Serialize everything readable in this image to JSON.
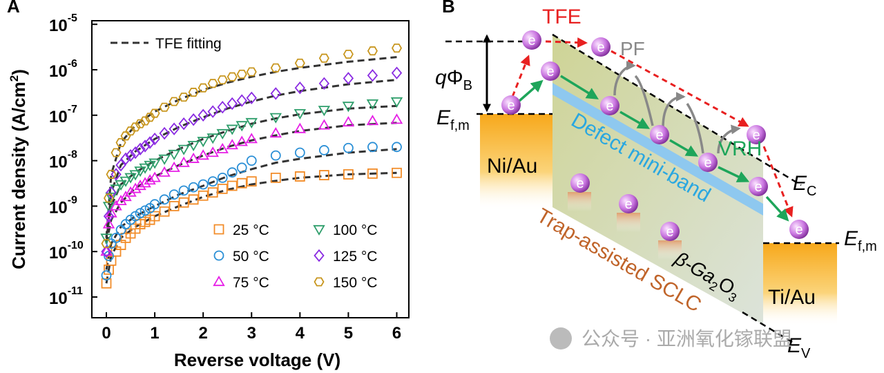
{
  "chart_data": {
    "type": "scatter",
    "panel": "A",
    "x_label": "Reverse voltage (V)",
    "y_label": [
      "Current density (A/cm",
      "2",
      ")"
    ],
    "log_y": true,
    "legend": "lower right",
    "xlim": [
      -0.3,
      6.25
    ],
    "xticks": [
      0,
      1,
      2,
      3,
      4,
      5,
      6
    ],
    "ylim": [
      3.5e-12,
      1.2e-05
    ],
    "yticks": [
      {
        "value": 1e-11,
        "label": [
          "10",
          "-11"
        ]
      },
      {
        "value": 1e-10,
        "label": [
          "10",
          "-10"
        ]
      },
      {
        "value": 1e-09,
        "label": [
          "10",
          "-9"
        ]
      },
      {
        "value": 1e-08,
        "label": [
          "10",
          "-8"
        ]
      },
      {
        "value": 1e-07,
        "label": [
          "10",
          "-7"
        ]
      },
      {
        "value": 1e-06,
        "label": [
          "10",
          "-6"
        ]
      },
      {
        "value": 1e-05,
        "label": [
          "10",
          "-5"
        ]
      }
    ],
    "x": [
      0,
      0.05,
      0.1,
      0.2,
      0.3,
      0.4,
      0.5,
      0.6,
      0.7,
      0.8,
      0.9,
      1.0,
      1.2,
      1.4,
      1.6,
      1.8,
      2.0,
      2.2,
      2.4,
      2.6,
      2.8,
      3.0,
      3.5,
      4.0,
      4.5,
      5.0,
      5.5,
      6.0
    ],
    "series": [
      {
        "name": "25 °C",
        "color": "#f28c28",
        "marker": "square",
        "values": [
          2e-11,
          4e-11,
          6.3e-11,
          1e-10,
          1.4e-10,
          2e-10,
          2.5e-10,
          3.2e-10,
          4e-10,
          4.5e-10,
          5e-10,
          6e-10,
          7.6e-10,
          1e-09,
          1.2e-09,
          1.4e-09,
          1.7e-09,
          2e-09,
          2.4e-09,
          2.8e-09,
          3.2e-09,
          3.5e-09,
          4.2e-09,
          4.5e-09,
          4.8e-09,
          5e-09,
          5.2e-09,
          5.4e-09
        ]
      },
      {
        "name": "50 °C",
        "color": "#2a8fd6",
        "marker": "circle",
        "values": [
          3e-11,
          8e-11,
          1.5e-10,
          2e-10,
          3e-10,
          4e-10,
          5e-10,
          6e-10,
          7e-10,
          8e-10,
          9e-10,
          1.1e-09,
          1.4e-09,
          1.8e-09,
          2.2e-09,
          2.6e-09,
          3e-09,
          3.5e-09,
          4.2e-09,
          5.5e-09,
          7e-09,
          1e-08,
          1.3e-08,
          1.5e-08,
          1.7e-08,
          1.9e-08,
          2e-08,
          2e-08
        ]
      },
      {
        "name": "75 °C",
        "color": "#e61ee6",
        "marker": "triangle-up",
        "values": [
          1e-10,
          4e-10,
          7e-10,
          1e-09,
          1.3e-09,
          1.6e-09,
          2e-09,
          2.4e-09,
          2.8e-09,
          3.2e-09,
          3.7e-09,
          4.2e-09,
          5.5e-09,
          7e-09,
          9e-09,
          1.1e-08,
          1.3e-08,
          1.5e-08,
          1.8e-08,
          2.2e-08,
          2.6e-08,
          3e-08,
          4e-08,
          5e-08,
          6e-08,
          7e-08,
          7.5e-08,
          8e-08
        ]
      },
      {
        "name": "100 °C",
        "color": "#2e9e6b",
        "marker": "triangle-down",
        "values": [
          2e-10,
          1e-09,
          1.6e-09,
          2.4e-09,
          3e-09,
          3.6e-09,
          4.3e-09,
          5e-09,
          6e-09,
          7e-09,
          8e-09,
          9e-09,
          1.1e-08,
          1.4e-08,
          1.8e-08,
          2.2e-08,
          2.7e-08,
          3.2e-08,
          4e-08,
          5e-08,
          6e-08,
          7e-08,
          9e-08,
          1.1e-07,
          1.3e-07,
          1.6e-07,
          1.8e-07,
          2e-07
        ]
      },
      {
        "name": "125 °C",
        "color": "#8a2be2",
        "marker": "diamond",
        "values": [
          1e-10,
          6e-10,
          2e-09,
          5e-09,
          8e-09,
          1.1e-08,
          1.3e-08,
          1.5e-08,
          1.8e-08,
          2.1e-08,
          2.5e-08,
          3e-08,
          4e-08,
          5e-08,
          6.5e-08,
          8e-08,
          1e-07,
          1.2e-07,
          1.5e-07,
          1.8e-07,
          2.1e-07,
          2.4e-07,
          3e-07,
          4e-07,
          5e-07,
          6.5e-07,
          7.5e-07,
          8.5e-07
        ]
      },
      {
        "name": "150 °C",
        "color": "#c8961e",
        "marker": "hexagon",
        "values": [
          1.5e-10,
          1.5e-09,
          5e-09,
          1.5e-08,
          2.5e-08,
          3.5e-08,
          4.5e-08,
          5.5e-08,
          6.5e-08,
          7.5e-08,
          9e-08,
          1.1e-07,
          1.5e-07,
          2e-07,
          2.5e-07,
          3.2e-07,
          4e-07,
          5e-07,
          6e-07,
          7e-07,
          8e-07,
          9e-07,
          1.1e-06,
          1.4e-06,
          1.8e-06,
          2.2e-06,
          2.6e-06,
          3e-06
        ]
      }
    ],
    "fits": {
      "name": "TFE fitting",
      "color": "#333333",
      "x": [
        0,
        0.1,
        0.3,
        0.6,
        1,
        1.5,
        2,
        2.5,
        3,
        3.5,
        4,
        5,
        6
      ],
      "curves": [
        [
          2e-11,
          8e-11,
          2e-10,
          3.5e-10,
          6e-10,
          1e-09,
          1.6e-09,
          2.3e-09,
          3e-09,
          3.6e-09,
          4.2e-09,
          5e-09,
          5.4e-09
        ],
        [
          4e-11,
          1.5e-10,
          3.5e-10,
          6e-10,
          1e-09,
          1.8e-09,
          2.8e-09,
          4.5e-09,
          6.5e-09,
          9e-09,
          1.1e-08,
          1.5e-08,
          1.8e-08
        ],
        [
          1.5e-10,
          5e-10,
          1.2e-09,
          2.5e-09,
          4.5e-09,
          8e-09,
          1.3e-08,
          2e-08,
          2.8e-08,
          3.6e-08,
          4.5e-08,
          6e-08,
          6.8e-08
        ],
        [
          2e-10,
          1e-09,
          3e-09,
          5.5e-09,
          1e-08,
          1.8e-08,
          3e-08,
          4.5e-08,
          6.5e-08,
          8.5e-08,
          1.05e-07,
          1.4e-07,
          1.6e-07
        ],
        [
          1.5e-10,
          2e-09,
          8e-09,
          1.6e-08,
          3e-08,
          5.5e-08,
          9e-08,
          1.4e-07,
          2e-07,
          2.7e-07,
          3.4e-07,
          4.8e-07,
          6e-07
        ],
        [
          2e-10,
          5e-09,
          2.5e-08,
          6e-08,
          1.2e-07,
          2.2e-07,
          3.6e-07,
          5.2e-07,
          7e-07,
          9e-07,
          1.1e-06,
          1.5e-06,
          1.9e-06
        ]
      ]
    }
  },
  "diagram": {
    "panel": "B",
    "tfe": "TFE",
    "pf": "PF",
    "vrh": "VRH",
    "barrier": [
      "q",
      "Φ",
      "B"
    ],
    "ef_left": [
      "E",
      "f,m"
    ],
    "ef_right": [
      "E",
      "f,m"
    ],
    "ec": [
      "E",
      "C"
    ],
    "ev": [
      "E",
      "V"
    ],
    "left_metal": "Ni/Au",
    "right_metal": "Ti/Au",
    "miniband": "Defect mini-band",
    "sclc": "Trap-assisted SCLC",
    "material": [
      "β-Ga",
      "2",
      "O",
      "3"
    ],
    "electron": "e",
    "watermark": "公众号 · 亚洲氧化镓联盟"
  }
}
